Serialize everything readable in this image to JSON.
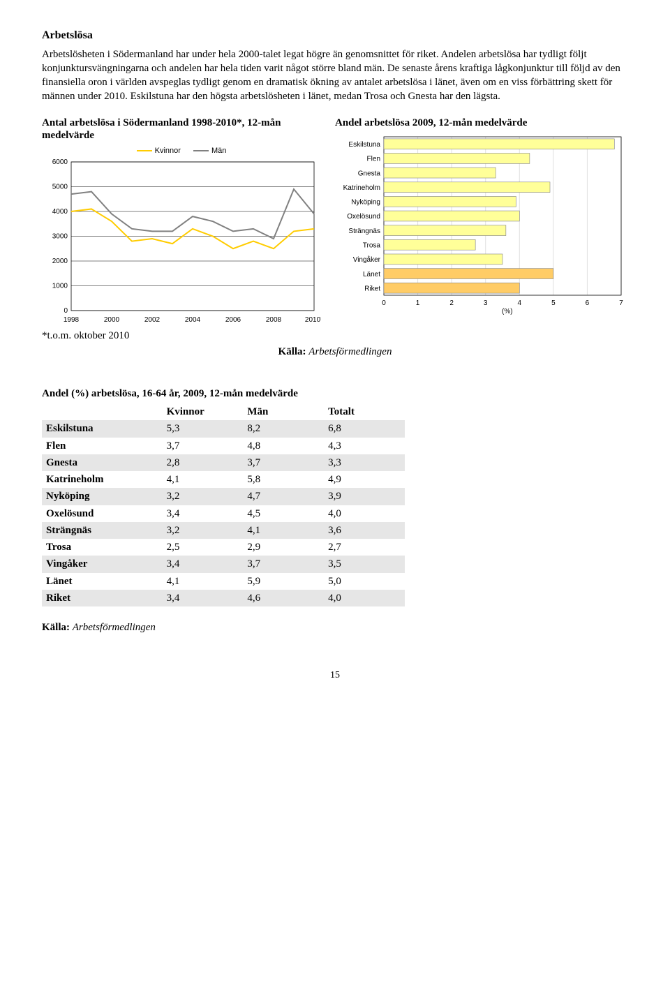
{
  "heading": "Arbetslösa",
  "paragraph": "Arbetslösheten i Södermanland har under hela 2000-talet legat högre än genomsnittet för riket. Andelen arbetslösa har tydligt följt konjunktursvängningarna och andelen har hela tiden varit något större bland män. De senaste årens kraftiga lågkonjunktur till följd av den finansiella oron i världen avspeglas tydligt genom en dramatisk ökning av antalet arbetslösa i länet, även om en viss förbättring skett för männen under 2010. Eskilstuna har den högsta arbetslösheten i länet, medan Trosa och Gnesta har den lägsta.",
  "line_chart": {
    "title": "Antal arbetslösa i Södermanland 1998-2010*, 12-mån medelvärde",
    "legend": {
      "kvinnor": "Kvinnor",
      "man": "Män"
    },
    "colors": {
      "kvinnor": "#ffcc00",
      "man": "#808080",
      "grid": "#000000",
      "background": "#ffffff"
    },
    "x_labels": [
      "1998",
      "2000",
      "2002",
      "2004",
      "2006",
      "2008",
      "2010*"
    ],
    "y_ticks": [
      0,
      1000,
      2000,
      3000,
      4000,
      5000,
      6000
    ],
    "ymax": 6000,
    "series_kvinnor": [
      4000,
      4100,
      3600,
      2800,
      2900,
      2700,
      3300,
      3000,
      2500,
      2800,
      2500,
      3200,
      3300
    ],
    "series_man": [
      4700,
      4800,
      3900,
      3300,
      3200,
      3200,
      3800,
      3600,
      3200,
      3300,
      2900,
      4900,
      3900
    ],
    "line_width": 2
  },
  "bar_chart": {
    "title": "Andel arbetslösa 2009, 12-mån medelvärde",
    "xlabel": "(%)",
    "xmax": 7,
    "x_ticks": [
      0,
      1,
      2,
      3,
      4,
      5,
      6,
      7
    ],
    "bar_color": "#ffff99",
    "highlight_color": "#ffcc66",
    "grid_color": "#e0e0e0",
    "border_color": "#808080",
    "categories": [
      "Eskilstuna",
      "Flen",
      "Gnesta",
      "Katrineholm",
      "Nyköping",
      "Oxelösund",
      "Strängnäs",
      "Trosa",
      "Vingåker",
      "Länet",
      "Riket"
    ],
    "values": [
      6.8,
      4.3,
      3.3,
      4.9,
      3.9,
      4.0,
      3.6,
      2.7,
      3.5,
      5.0,
      4.0
    ],
    "highlight_rows": [
      "Länet",
      "Riket"
    ]
  },
  "footnote": "*t.o.m. oktober 2010",
  "source_label": "Källa:",
  "source_value": "Arbetsförmedlingen",
  "table": {
    "title": "Andel (%) arbetslösa, 16-64 år, 2009, 12-mån medelvärde",
    "columns": [
      "",
      "Kvinnor",
      "Män",
      "Totalt"
    ],
    "rows": [
      [
        "Eskilstuna",
        "5,3",
        "8,2",
        "6,8"
      ],
      [
        "Flen",
        "3,7",
        "4,8",
        "4,3"
      ],
      [
        "Gnesta",
        "2,8",
        "3,7",
        "3,3"
      ],
      [
        "Katrineholm",
        "4,1",
        "5,8",
        "4,9"
      ],
      [
        "Nyköping",
        "3,2",
        "4,7",
        "3,9"
      ],
      [
        "Oxelösund",
        "3,4",
        "4,5",
        "4,0"
      ],
      [
        "Strängnäs",
        "3,2",
        "4,1",
        "3,6"
      ],
      [
        "Trosa",
        "2,5",
        "2,9",
        "2,7"
      ],
      [
        "Vingåker",
        "3,4",
        "3,7",
        "3,5"
      ],
      [
        "Länet",
        "4,1",
        "5,9",
        "5,0"
      ],
      [
        "Riket",
        "3,4",
        "4,6",
        "4,0"
      ]
    ],
    "shaded_rows": [
      0,
      2,
      4,
      6,
      8,
      10
    ]
  },
  "page_number": "15"
}
